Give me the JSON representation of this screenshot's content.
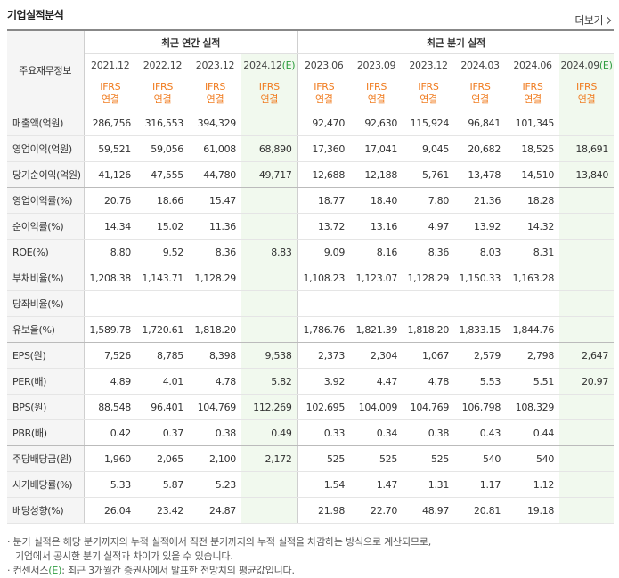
{
  "header": {
    "title": "기업실적분석",
    "more_label": "더보기"
  },
  "table": {
    "row_header_label": "주요재무정보",
    "annual_group_label": "최근 연간 실적",
    "quarter_group_label": "최근 분기 실적",
    "periods": [
      "2021.12",
      "2022.12",
      "2023.12",
      "2024.12",
      "2023.06",
      "2023.09",
      "2023.12",
      "2024.03",
      "2024.06",
      "2024.09"
    ],
    "estimate_marker": "(E)",
    "ifrs_top": "IFRS",
    "ifrs_bottom": "연결",
    "rows": [
      {
        "label": "매출액(억원)",
        "values": [
          "286,756",
          "316,553",
          "394,329",
          "",
          "92,470",
          "92,630",
          "115,924",
          "96,841",
          "101,345",
          ""
        ]
      },
      {
        "label": "영업이익(억원)",
        "values": [
          "59,521",
          "59,056",
          "61,008",
          "68,890",
          "17,360",
          "17,041",
          "9,045",
          "20,682",
          "18,525",
          "18,691"
        ]
      },
      {
        "label": "당기순이익(억원)",
        "values": [
          "41,126",
          "47,555",
          "44,780",
          "49,717",
          "12,688",
          "12,188",
          "5,761",
          "13,478",
          "14,510",
          "13,840"
        ]
      },
      {
        "label": "영업이익률(%)",
        "values": [
          "20.76",
          "18.66",
          "15.47",
          "",
          "18.77",
          "18.40",
          "7.80",
          "21.36",
          "18.28",
          ""
        ]
      },
      {
        "label": "순이익률(%)",
        "values": [
          "14.34",
          "15.02",
          "11.36",
          "",
          "13.72",
          "13.16",
          "4.97",
          "13.92",
          "14.32",
          ""
        ]
      },
      {
        "label": "ROE(%)",
        "values": [
          "8.80",
          "9.52",
          "8.36",
          "8.83",
          "9.09",
          "8.16",
          "8.36",
          "8.03",
          "8.31",
          ""
        ]
      },
      {
        "label": "부채비율(%)",
        "values": [
          "1,208.38",
          "1,143.71",
          "1,128.29",
          "",
          "1,108.23",
          "1,123.07",
          "1,128.29",
          "1,150.33",
          "1,163.28",
          ""
        ]
      },
      {
        "label": "당좌비율(%)",
        "values": [
          "",
          "",
          "",
          "",
          "",
          "",
          "",
          "",
          "",
          ""
        ]
      },
      {
        "label": "유보율(%)",
        "values": [
          "1,589.78",
          "1,720.61",
          "1,818.20",
          "",
          "1,786.76",
          "1,821.39",
          "1,818.20",
          "1,833.15",
          "1,844.76",
          ""
        ]
      },
      {
        "label": "EPS(원)",
        "values": [
          "7,526",
          "8,785",
          "8,398",
          "9,538",
          "2,373",
          "2,304",
          "1,067",
          "2,579",
          "2,798",
          "2,647"
        ]
      },
      {
        "label": "PER(배)",
        "values": [
          "4.89",
          "4.01",
          "4.78",
          "5.82",
          "3.92",
          "4.47",
          "4.78",
          "5.53",
          "5.51",
          "20.97"
        ]
      },
      {
        "label": "BPS(원)",
        "values": [
          "88,548",
          "96,401",
          "104,769",
          "112,269",
          "102,695",
          "104,009",
          "104,769",
          "106,798",
          "108,329",
          ""
        ]
      },
      {
        "label": "PBR(배)",
        "values": [
          "0.42",
          "0.37",
          "0.38",
          "0.49",
          "0.33",
          "0.34",
          "0.38",
          "0.43",
          "0.44",
          ""
        ]
      },
      {
        "label": "주당배당금(원)",
        "values": [
          "1,960",
          "2,065",
          "2,100",
          "2,172",
          "525",
          "525",
          "525",
          "540",
          "540",
          ""
        ]
      },
      {
        "label": "시가배당률(%)",
        "values": [
          "5.33",
          "5.87",
          "5.23",
          "",
          "1.54",
          "1.47",
          "1.31",
          "1.17",
          "1.12",
          ""
        ]
      },
      {
        "label": "배당성향(%)",
        "values": [
          "26.04",
          "23.42",
          "24.87",
          "",
          "21.98",
          "22.70",
          "48.97",
          "20.81",
          "19.18",
          ""
        ]
      }
    ]
  },
  "notes": {
    "note1_line1": "분기 실적은 해당 분기까지의 누적 실적에서 직전 분기까지의 누적 실적을 차감하는 방식으로 계산되므로,",
    "note1_line2": "기업에서 공시한 분기 실적과 차이가 있을 수 있습니다.",
    "note2_prefix": "컨센서스",
    "note2_suffix": ": 최근 3개월간 증권사에서 발표한 전망치의 평균값입니다."
  }
}
